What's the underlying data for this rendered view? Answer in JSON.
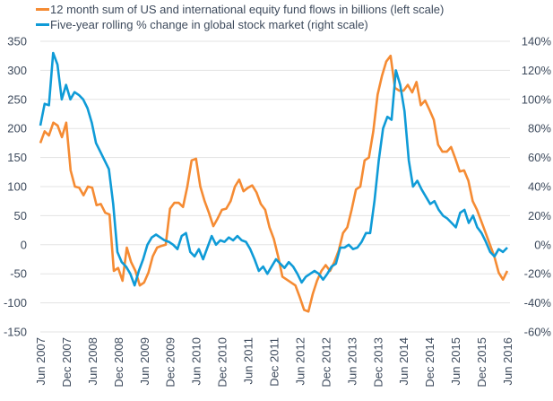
{
  "chart_data": {
    "type": "line",
    "title": "",
    "legend_position": "top-left",
    "colors": {
      "flows": "#f58b33",
      "stock": "#0f9bd7",
      "grid": "#e3e3e3",
      "text": "#3d4a5c"
    },
    "left_axis": {
      "ylim": [
        -150,
        350
      ],
      "ticks": [
        "350",
        "300",
        "250",
        "200",
        "150",
        "100",
        "50",
        "0",
        "-50",
        "-100",
        "-150"
      ],
      "tick_values": [
        350,
        300,
        250,
        200,
        150,
        100,
        50,
        0,
        -50,
        -100,
        -150
      ]
    },
    "right_axis": {
      "ylim": [
        -60,
        140
      ],
      "ticks": [
        "140%",
        "120%",
        "100%",
        "80%",
        "60%",
        "40%",
        "20%",
        "0%",
        "-20%",
        "-40%",
        "-60%"
      ],
      "tick_values": [
        140,
        120,
        100,
        80,
        60,
        40,
        20,
        0,
        -20,
        -40,
        -60
      ]
    },
    "x_ticks": [
      "Jun 2007",
      "Dec 2007",
      "Jun 2008",
      "Dec 2008",
      "Jun 2009",
      "Dec 2009",
      "Jun 2010",
      "Dec 2010",
      "Jun 2011",
      "Dec 2011",
      "Jun 2012",
      "Dec 2012",
      "Jun 2013",
      "Dec 2013",
      "Jun 2014",
      "Dec 2014",
      "Jun 2015",
      "Dec 2015",
      "Jun 2016"
    ],
    "x_range_months": [
      0,
      108
    ],
    "grid": true,
    "series": [
      {
        "name": "12 month sum of US and international equity fund flows in billions (left scale)",
        "axis": "left",
        "values": [
          175,
          195,
          188,
          210,
          205,
          185,
          210,
          128,
          100,
          98,
          85,
          100,
          98,
          68,
          70,
          55,
          52,
          -45,
          -40,
          -62,
          -5,
          -30,
          -45,
          -70,
          -65,
          -48,
          -20,
          -5,
          -2,
          0,
          62,
          72,
          72,
          65,
          100,
          145,
          148,
          100,
          75,
          55,
          32,
          45,
          60,
          62,
          75,
          100,
          112,
          92,
          98,
          102,
          90,
          70,
          60,
          30,
          10,
          -20,
          -55,
          -60,
          -65,
          -70,
          -90,
          -112,
          -115,
          -85,
          -62,
          -45,
          -35,
          -45,
          -30,
          -10,
          20,
          30,
          60,
          95,
          100,
          145,
          150,
          195,
          258,
          290,
          315,
          325,
          270,
          265,
          265,
          275,
          262,
          280,
          240,
          248,
          232,
          215,
          172,
          160,
          160,
          168,
          148,
          126,
          128,
          110,
          75,
          60,
          40,
          20,
          0,
          -20,
          -48,
          -60,
          -45
        ],
        "sample_step_months": 1
      },
      {
        "name": "Five-year rolling % change in global stock market (right scale)",
        "axis": "right",
        "values": [
          82,
          97,
          96,
          132,
          124,
          100,
          110,
          100,
          105,
          103,
          100,
          94,
          84,
          70,
          64,
          58,
          52,
          28,
          -5,
          -12,
          -15,
          -20,
          -28,
          -18,
          -10,
          0,
          5,
          7,
          5,
          3,
          2,
          0,
          -3,
          6,
          8,
          -5,
          -8,
          -3,
          -10,
          -2,
          6,
          0,
          3,
          2,
          5,
          3,
          6,
          3,
          2,
          -3,
          -10,
          -18,
          -15,
          -20,
          -15,
          -10,
          -13,
          -16,
          -12,
          -15,
          -20,
          -26,
          -22,
          -20,
          -18,
          -20,
          -24,
          -20,
          -15,
          -13,
          -2,
          -2,
          0,
          -3,
          -2,
          2,
          8,
          8,
          30,
          58,
          80,
          88,
          86,
          120,
          110,
          92,
          58,
          40,
          44,
          38,
          33,
          28,
          30,
          24,
          20,
          18,
          15,
          12,
          22,
          24,
          15,
          20,
          12,
          8,
          2,
          -5,
          -8,
          -3,
          -5,
          -2
        ]
      }
    ]
  },
  "legend": {
    "items": [
      {
        "label": "12 month sum of US and international equity fund flows in billions (left scale)",
        "color": "#f58b33"
      },
      {
        "label": "Five-year rolling % change in global stock market (right scale)",
        "color": "#0f9bd7"
      }
    ]
  }
}
